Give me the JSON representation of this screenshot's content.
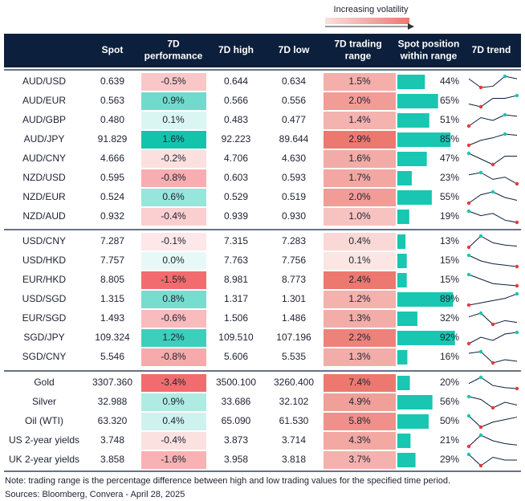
{
  "header": {
    "volatility_note": "Increasing volatility",
    "columns": [
      [
        "Spot"
      ],
      [
        "7D",
        "performance"
      ],
      [
        "7D high"
      ],
      [
        "7D low"
      ],
      [
        "7D trading",
        "range"
      ],
      [
        "Spot position",
        "within range"
      ],
      [
        "7D trend"
      ]
    ]
  },
  "settings": {
    "header_color": "#0c1f3c",
    "positive_color": "#13c4ad",
    "negative_color": "#f26c6f",
    "range_color": "#ec7870",
    "bar_color": "#18c6b2",
    "high_marker_color": "#18c6b2",
    "low_marker_color": "#e8383d",
    "trend_color": "#0c1f3c"
  },
  "groups": [
    {
      "rows": [
        {
          "name": "AUD/USD",
          "spot": "0.639",
          "perf": {
            "value": -0.5,
            "label": "-0.5%"
          },
          "high": "0.644",
          "low": "0.634",
          "range": {
            "value": 1.5,
            "label": "1.5%"
          },
          "pos": {
            "value": 44,
            "label": "44%"
          },
          "trend": [
            6,
            2.5,
            3,
            7,
            6
          ]
        },
        {
          "name": "AUD/EUR",
          "spot": "0.563",
          "perf": {
            "value": 0.9,
            "label": "0.9%"
          },
          "high": "0.566",
          "low": "0.556",
          "range": {
            "value": 2.0,
            "label": "2.0%"
          },
          "pos": {
            "value": 65,
            "label": "65%"
          },
          "trend": [
            3,
            2,
            5,
            5,
            6
          ]
        },
        {
          "name": "AUD/GBP",
          "spot": "0.480",
          "perf": {
            "value": 0.1,
            "label": "0.1%"
          },
          "high": "0.483",
          "low": "0.477",
          "range": {
            "value": 1.4,
            "label": "1.4%"
          },
          "pos": {
            "value": 51,
            "label": "51%"
          },
          "trend": [
            3,
            6,
            5,
            7,
            6.5
          ]
        },
        {
          "name": "AUD/JPY",
          "spot": "91.829",
          "perf": {
            "value": 1.6,
            "label": "1.6%"
          },
          "high": "92.223",
          "low": "89.644",
          "range": {
            "value": 2.9,
            "label": "2.9%"
          },
          "pos": {
            "value": 85,
            "label": "85%"
          },
          "trend": [
            2,
            4,
            5,
            6.5,
            6
          ]
        },
        {
          "name": "AUD/CNY",
          "spot": "4.666",
          "perf": {
            "value": -0.2,
            "label": "-0.2%"
          },
          "high": "4.706",
          "low": "4.630",
          "range": {
            "value": 1.6,
            "label": "1.6%"
          },
          "pos": {
            "value": 47,
            "label": "47%"
          },
          "trend": [
            6,
            4,
            2,
            5,
            5
          ]
        },
        {
          "name": "NZD/USD",
          "spot": "0.595",
          "perf": {
            "value": -0.8,
            "label": "-0.8%"
          },
          "high": "0.603",
          "low": "0.593",
          "range": {
            "value": 1.7,
            "label": "1.7%"
          },
          "pos": {
            "value": 23,
            "label": "23%"
          },
          "trend": [
            6,
            7,
            4,
            5,
            2
          ]
        },
        {
          "name": "NZD/EUR",
          "spot": "0.524",
          "perf": {
            "value": 0.6,
            "label": "0.6%"
          },
          "high": "0.529",
          "low": "0.519",
          "range": {
            "value": 2.0,
            "label": "2.0%"
          },
          "pos": {
            "value": 55,
            "label": "55%"
          },
          "trend": [
            3,
            6,
            7,
            5,
            4
          ]
        },
        {
          "name": "NZD/AUD",
          "spot": "0.932",
          "perf": {
            "value": -0.4,
            "label": "-0.4%"
          },
          "high": "0.939",
          "low": "0.930",
          "range": {
            "value": 1.0,
            "label": "1.0%"
          },
          "pos": {
            "value": 19,
            "label": "19%"
          },
          "trend": [
            7,
            5,
            6,
            3,
            2
          ]
        }
      ]
    },
    {
      "rows": [
        {
          "name": "USD/CNY",
          "spot": "7.287",
          "perf": {
            "value": -0.1,
            "label": "-0.1%"
          },
          "high": "7.315",
          "low": "7.283",
          "range": {
            "value": 0.4,
            "label": "0.4%"
          },
          "pos": {
            "value": 13,
            "label": "13%"
          },
          "trend": [
            3,
            8,
            5,
            4,
            3.5
          ]
        },
        {
          "name": "USD/HKD",
          "spot": "7.757",
          "perf": {
            "value": 0.0,
            "label": "0.0%"
          },
          "high": "7.763",
          "low": "7.756",
          "range": {
            "value": 0.1,
            "label": "0.1%"
          },
          "pos": {
            "value": 15,
            "label": "15%"
          },
          "trend": [
            7,
            5,
            4,
            3.5,
            3
          ]
        },
        {
          "name": "EUR/HKD",
          "spot": "8.805",
          "perf": {
            "value": -1.5,
            "label": "-1.5%"
          },
          "high": "8.981",
          "low": "8.773",
          "range": {
            "value": 2.4,
            "label": "2.4%"
          },
          "pos": {
            "value": 15,
            "label": "15%"
          },
          "trend": [
            7,
            5,
            3,
            2.5,
            2
          ]
        },
        {
          "name": "USD/SGD",
          "spot": "1.315",
          "perf": {
            "value": 0.8,
            "label": "0.8%"
          },
          "high": "1.317",
          "low": "1.301",
          "range": {
            "value": 1.2,
            "label": "1.2%"
          },
          "pos": {
            "value": 89,
            "label": "89%"
          },
          "trend": [
            3,
            4,
            5,
            6,
            8
          ]
        },
        {
          "name": "EUR/SGD",
          "spot": "1.493",
          "perf": {
            "value": -0.6,
            "label": "-0.6%"
          },
          "high": "1.506",
          "low": "1.486",
          "range": {
            "value": 1.3,
            "label": "1.3%"
          },
          "pos": {
            "value": 32,
            "label": "32%"
          },
          "trend": [
            5,
            6,
            3,
            4,
            3.5
          ]
        },
        {
          "name": "SGD/JPY",
          "spot": "109.324",
          "perf": {
            "value": 1.2,
            "label": "1.2%"
          },
          "high": "109.510",
          "low": "107.196",
          "range": {
            "value": 2.2,
            "label": "2.2%"
          },
          "pos": {
            "value": 92,
            "label": "92%"
          },
          "trend": [
            3,
            5,
            4,
            6,
            6.5
          ]
        },
        {
          "name": "SGD/CNY",
          "spot": "5.546",
          "perf": {
            "value": -0.8,
            "label": "-0.8%"
          },
          "high": "5.606",
          "low": "5.535",
          "range": {
            "value": 1.3,
            "label": "1.3%"
          },
          "pos": {
            "value": 16,
            "label": "16%"
          },
          "trend": [
            6,
            6.5,
            3,
            4,
            3.5
          ]
        }
      ]
    },
    {
      "rows": [
        {
          "name": "Gold",
          "spot": "3307.360",
          "perf": {
            "value": -3.4,
            "label": "-3.4%"
          },
          "high": "3500.100",
          "low": "3260.400",
          "range": {
            "value": 7.4,
            "label": "7.4%"
          },
          "pos": {
            "value": 20,
            "label": "20%"
          },
          "trend": [
            5,
            8,
            4,
            3,
            2.5
          ]
        },
        {
          "name": "Silver",
          "spot": "32.988",
          "perf": {
            "value": 0.9,
            "label": "0.9%"
          },
          "high": "33.686",
          "low": "32.102",
          "range": {
            "value": 4.9,
            "label": "4.9%"
          },
          "pos": {
            "value": 56,
            "label": "56%"
          },
          "trend": [
            7,
            6,
            3,
            5,
            4
          ]
        },
        {
          "name": "Oil (WTI)",
          "spot": "63.320",
          "perf": {
            "value": 0.4,
            "label": "0.4%"
          },
          "high": "65.090",
          "low": "61.530",
          "range": {
            "value": 5.8,
            "label": "5.8%"
          },
          "pos": {
            "value": 50,
            "label": "50%"
          },
          "trend": [
            7.5,
            3,
            5,
            6,
            7
          ]
        },
        {
          "name": "US 2-year yields",
          "spot": "3.748",
          "perf": {
            "value": -0.4,
            "label": "-0.4%"
          },
          "high": "3.873",
          "low": "3.714",
          "range": {
            "value": 4.3,
            "label": "4.3%"
          },
          "pos": {
            "value": 21,
            "label": "21%"
          },
          "trend": [
            3,
            7,
            5,
            4,
            3.5
          ]
        },
        {
          "name": "UK 2-year yields",
          "spot": "3.858",
          "perf": {
            "value": -1.6,
            "label": "-1.6%"
          },
          "high": "3.958",
          "low": "3.818",
          "range": {
            "value": 3.7,
            "label": "3.7%"
          },
          "pos": {
            "value": 29,
            "label": "29%"
          },
          "trend": [
            7,
            3,
            6,
            5,
            5
          ]
        }
      ]
    }
  ],
  "footer": {
    "note": "Note: trading range is the percentage difference between high and low trading values for the specified time period.",
    "sources": "Sources: Bloomberg, Convera - April 28, 2025"
  }
}
